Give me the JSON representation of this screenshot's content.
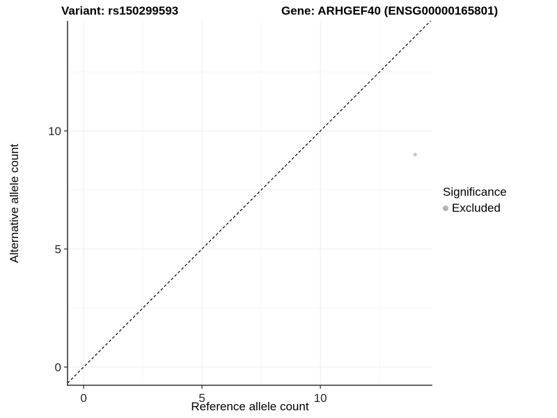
{
  "chart_data": {
    "type": "scatter",
    "title_variant": "Variant: rs150299593",
    "title_gene": "Gene: ARHGEF40 (ENSG00000165801)",
    "xlabel": "Reference allele count",
    "ylabel": "Alternative allele count",
    "xlim": [
      -0.68,
      14.73
    ],
    "ylim": [
      -0.77,
      14.66
    ],
    "x_ticks": [
      0,
      5,
      10
    ],
    "y_ticks": [
      0,
      5,
      10
    ],
    "grid": "faint major and minor gridlines on white panel",
    "points": [
      {
        "x": 14,
        "y": 9,
        "series": "Excluded"
      }
    ],
    "identity_line": {
      "equation": "y = x",
      "style": "dashed",
      "color": "#000000"
    },
    "legend": {
      "position": "right",
      "title": "Significance",
      "entries": [
        {
          "label": "Excluded",
          "color": "#b2b2b2"
        }
      ]
    },
    "point_color": "#c8c8c8",
    "axis_color": "#333333",
    "grid_major_color": "#ebebeb",
    "grid_minor_color": "#f5f5f5"
  }
}
